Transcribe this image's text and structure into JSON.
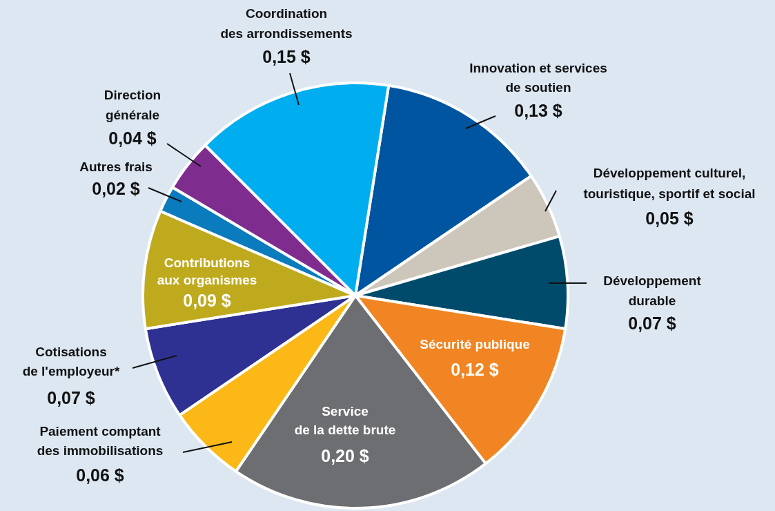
{
  "chart_data": {
    "type": "pie",
    "categories": [
      "Innovation et services de soutien",
      "Développement culturel, touristique, sportif et social",
      "Développement durable",
      "Sécurité publique",
      "Service de la dette brute",
      "Paiement comptant des immobilisations",
      "Cotisations de l'employeur*",
      "Contributions aux organismes",
      "Autres frais",
      "Direction générale",
      "Coordination des arrondissements"
    ],
    "values": [
      0.13,
      0.05,
      0.07,
      0.12,
      0.2,
      0.06,
      0.07,
      0.09,
      0.02,
      0.04,
      0.15
    ],
    "value_labels": [
      "0,13 $",
      "0,05 $",
      "0,07 $",
      "0,12 $",
      "0,20 $",
      "0,06 $",
      "0,07 $",
      "0,09 $",
      "0,02 $",
      "0,04 $",
      "0,15 $"
    ],
    "colors": [
      "#0055a0",
      "#cdc6bb",
      "#004b6c",
      "#f18523",
      "#6d6e72",
      "#fbb816",
      "#2e3192",
      "#bfaa1e",
      "#0a7bbd",
      "#7e2d8f",
      "#00aeef"
    ],
    "legend": false
  }
}
